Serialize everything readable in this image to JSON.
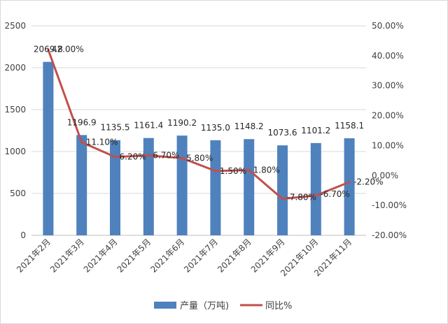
{
  "chart_data": {
    "type": "bar+line",
    "categories": [
      "2021年2月",
      "2021年3月",
      "2021年4月",
      "2021年5月",
      "2021年6月",
      "2021年7月",
      "2021年8月",
      "2021年9月",
      "2021年10月",
      "2021年11月"
    ],
    "series": [
      {
        "name": "产量（万吨)",
        "type": "bar",
        "axis": "left",
        "values": [
          2069.8,
          1196.9,
          1135.5,
          1161.4,
          1190.2,
          1135.0,
          1148.2,
          1073.6,
          1101.2,
          1158.1
        ],
        "labels": [
          "2069.8",
          "1196.9",
          "1135.5",
          "1161.4",
          "1190.2",
          "1135.0",
          "1148.2",
          "1073.6",
          "1101.2",
          "1158.1"
        ],
        "color": "#4f81bd"
      },
      {
        "name": "同比%",
        "type": "line",
        "axis": "right",
        "values": [
          42.0,
          11.1,
          6.2,
          6.7,
          5.8,
          1.5,
          1.8,
          -7.8,
          -6.7,
          -2.2
        ],
        "labels": [
          "42.00%",
          "11.10%",
          "6.20%",
          "6.70%",
          "5.80%",
          "1.50%",
          "1.80%",
          "-7.80%",
          "-6.70%",
          "-2.20%"
        ],
        "color": "#c0504d"
      }
    ],
    "y_left": {
      "min": 0,
      "max": 2500,
      "ticks": [
        "0",
        "500",
        "1000",
        "1500",
        "2000",
        "2500"
      ]
    },
    "y_right": {
      "min": -20,
      "max": 50,
      "ticks": [
        "-20.00%",
        "-10.00%",
        "0.00%",
        "10.00%",
        "20.00%",
        "30.00%",
        "40.00%",
        "50.00%"
      ]
    },
    "grid": true,
    "legend": "bottom"
  }
}
